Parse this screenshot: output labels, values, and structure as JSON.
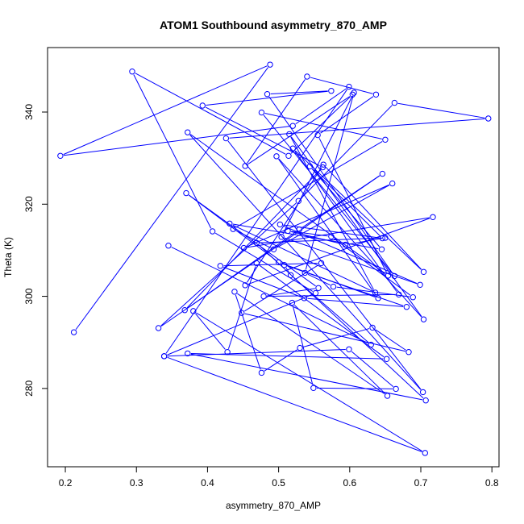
{
  "chart_data": {
    "type": "line",
    "title": "ATOM1 Southbound asymmetry_870_AMP",
    "xlabel": "asymmetry_870_AMP",
    "ylabel": "Theta (K)",
    "xlim": [
      0.175,
      0.81
    ],
    "ylim": [
      263.0,
      354.0
    ],
    "xticks": [
      0.2,
      0.3,
      0.4,
      0.5,
      0.6,
      0.7,
      0.8
    ],
    "xtick_labels": [
      "0.2",
      "0.3",
      "0.4",
      "0.5",
      "0.6",
      "0.7",
      "0.8"
    ],
    "yticks": [
      280,
      300,
      320,
      340
    ],
    "ytick_labels": [
      "280",
      "300",
      "320",
      "340"
    ],
    "grid": false,
    "line_color": "#0000ff",
    "marker": "open-circle",
    "series": [
      {
        "x": [
          0.212,
          0.488,
          0.193,
          0.52,
          0.599,
          0.339,
          0.552,
          0.407,
          0.294,
          0.514,
          0.604,
          0.453,
          0.54,
          0.637,
          0.555,
          0.654,
          0.372,
          0.703,
          0.426,
          0.795,
          0.663,
          0.528,
          0.331,
          0.646,
          0.529,
          0.368,
          0.562,
          0.393,
          0.574,
          0.484,
          0.663,
          0.476,
          0.65,
          0.436,
          0.493,
          0.66,
          0.451,
          0.717,
          0.453,
          0.563,
          0.704,
          0.52,
          0.669,
          0.479,
          0.556,
          0.37,
          0.5,
          0.64,
          0.497,
          0.704,
          0.515,
          0.636,
          0.431,
          0.645,
          0.544,
          0.646,
          0.502,
          0.699,
          0.504,
          0.606,
          0.537,
          0.577,
          0.689,
          0.574,
          0.513,
          0.594,
          0.65,
          0.469,
          0.707,
          0.372,
          0.652,
          0.469,
          0.428,
          0.38,
          0.706,
          0.339,
          0.599,
          0.665,
          0.549,
          0.519,
          0.653,
          0.438,
          0.476,
          0.53,
          0.632,
          0.683,
          0.448,
          0.56,
          0.418,
          0.536,
          0.68,
          0.508,
          0.517,
          0.63,
          0.345
        ],
        "y": [
          292.2,
          350.3,
          330.5,
          337.0,
          345.5,
          287.0,
          300.7,
          314.1,
          348.8,
          330.5,
          343.8,
          328.3,
          347.7,
          343.8,
          335.0,
          304.5,
          335.6,
          279.2,
          334.3,
          338.6,
          342.0,
          320.7,
          293.1,
          326.6,
          314.5,
          297.0,
          328.0,
          341.4,
          344.6,
          343.9,
          304.4,
          339.9,
          334.0,
          314.6,
          310.2,
          324.5,
          310.5,
          317.2,
          302.4,
          328.6,
          305.3,
          332.1,
          300.4,
          300.0,
          301.8,
          322.4,
          307.4,
          299.6,
          330.4,
          295.0,
          335.2,
          300.8,
          315.8,
          310.2,
          328.2,
          312.6,
          315.6,
          302.5,
          312.9,
          344.2,
          305.1,
          302.1,
          299.8,
          313.0,
          314.2,
          311.2,
          312.7,
          311.6,
          277.4,
          287.6,
          286.4,
          307.2,
          287.9,
          296.8,
          266.0,
          287.0,
          288.5,
          279.9,
          280.1,
          298.6,
          278.4,
          301.0,
          283.4,
          288.8,
          293.2,
          287.9,
          296.4,
          307.2,
          306.6,
          299.6,
          297.7,
          306.8,
          304.6,
          289.5,
          311.0
        ]
      }
    ]
  }
}
